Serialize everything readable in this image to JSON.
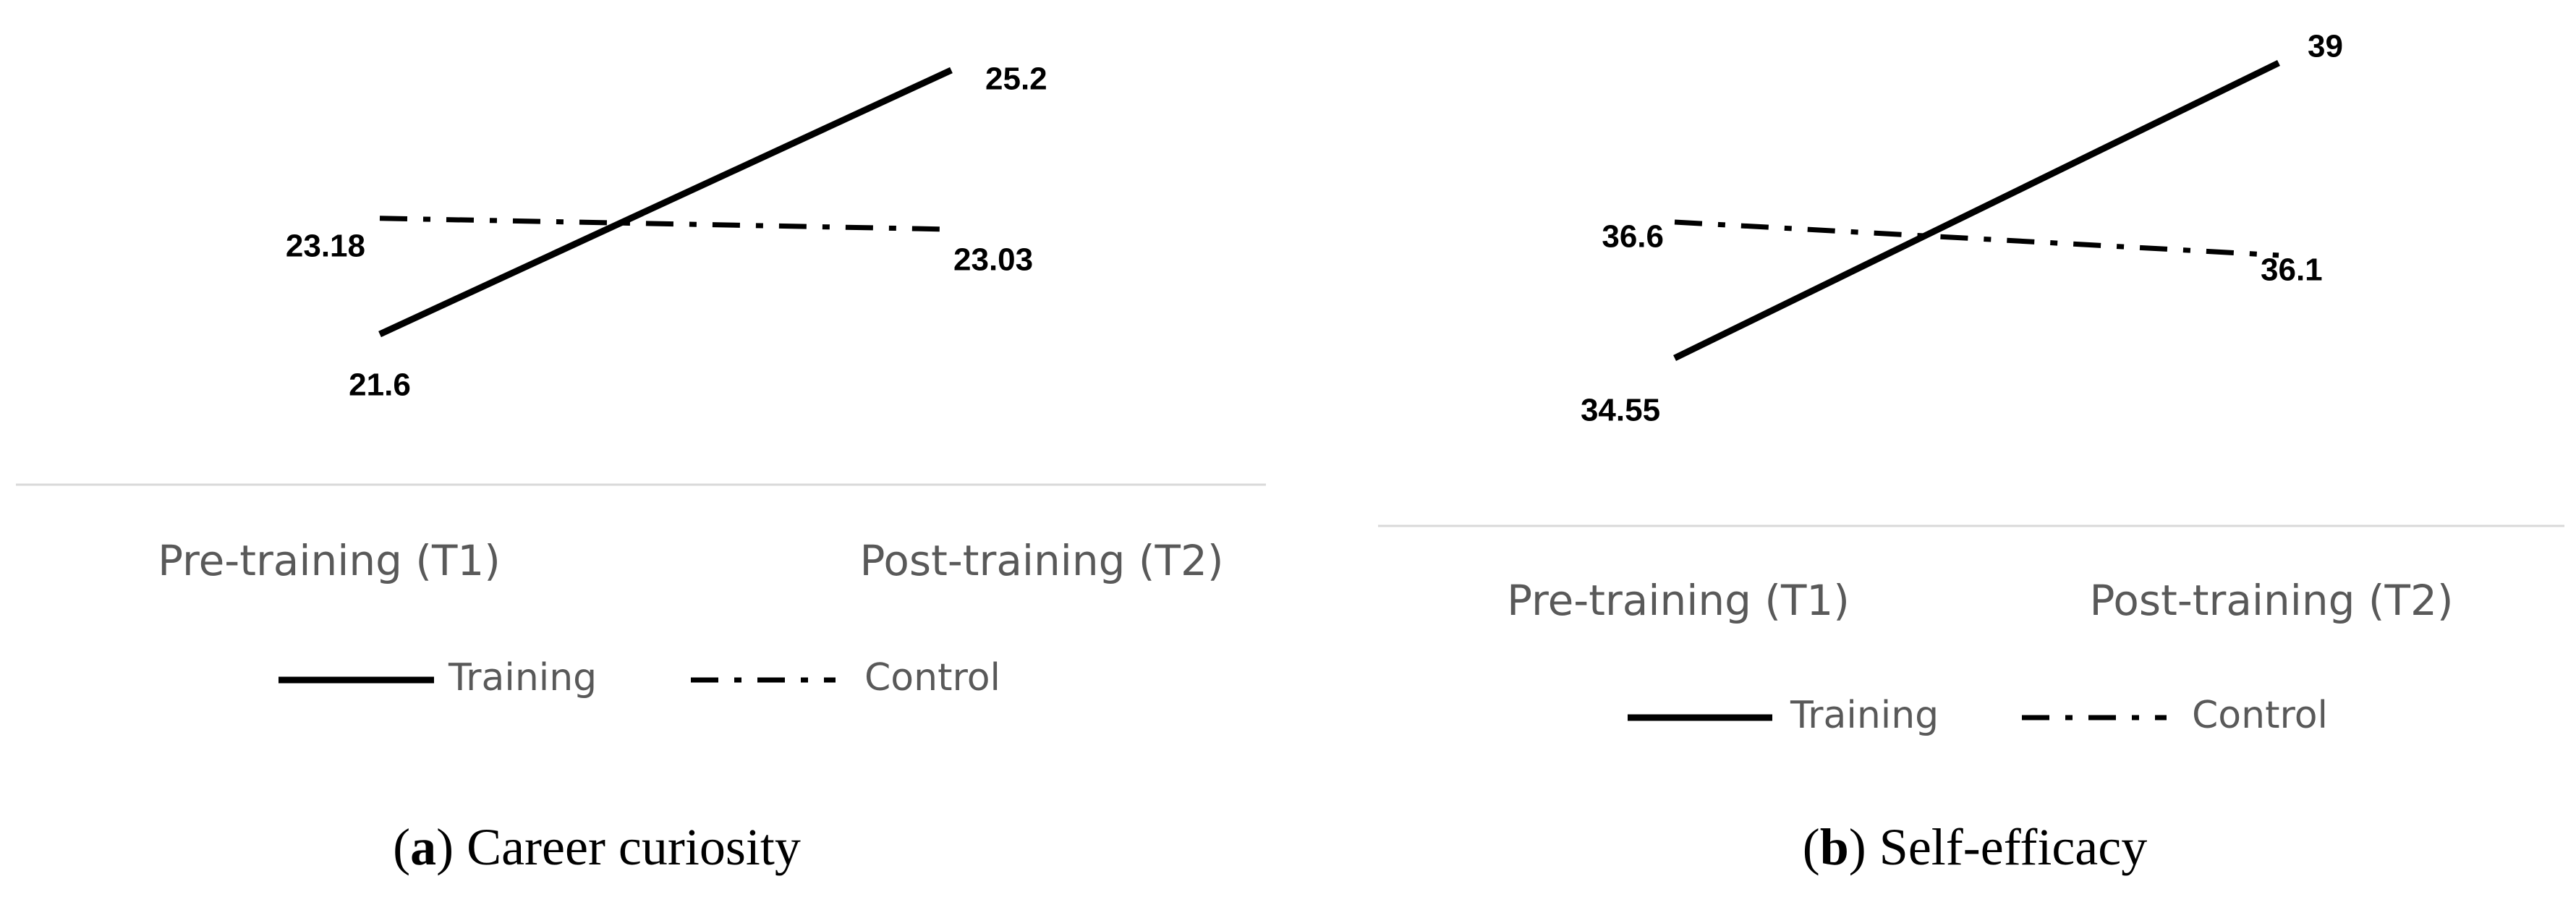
{
  "chart_data": [
    {
      "type": "line",
      "caption": {
        "letter": "a",
        "text": "Career curiosity"
      },
      "categories": [
        "Pre-training (T1)",
        "Post-training (T2)"
      ],
      "series": [
        {
          "name": "Training",
          "values": [
            21.6,
            25.2
          ],
          "value_labels": [
            "21.6",
            "25.2"
          ],
          "style": "solid"
        },
        {
          "name": "Control",
          "values": [
            23.18,
            23.03
          ],
          "value_labels": [
            "23.18",
            "23.03"
          ],
          "style": "dash-dot"
        }
      ],
      "legend_position": "bottom",
      "grid": false
    },
    {
      "type": "line",
      "caption": {
        "letter": "b",
        "text": "Self-efficacy"
      },
      "categories": [
        "Pre-training (T1)",
        "Post-training (T2)"
      ],
      "series": [
        {
          "name": "Training",
          "values": [
            34.55,
            39
          ],
          "value_labels": [
            "34.55",
            "39"
          ],
          "style": "solid"
        },
        {
          "name": "Control",
          "values": [
            36.6,
            36.1
          ],
          "value_labels": [
            "36.6",
            "36.1"
          ],
          "style": "dash-dot"
        }
      ],
      "legend_position": "bottom",
      "grid": false
    }
  ]
}
